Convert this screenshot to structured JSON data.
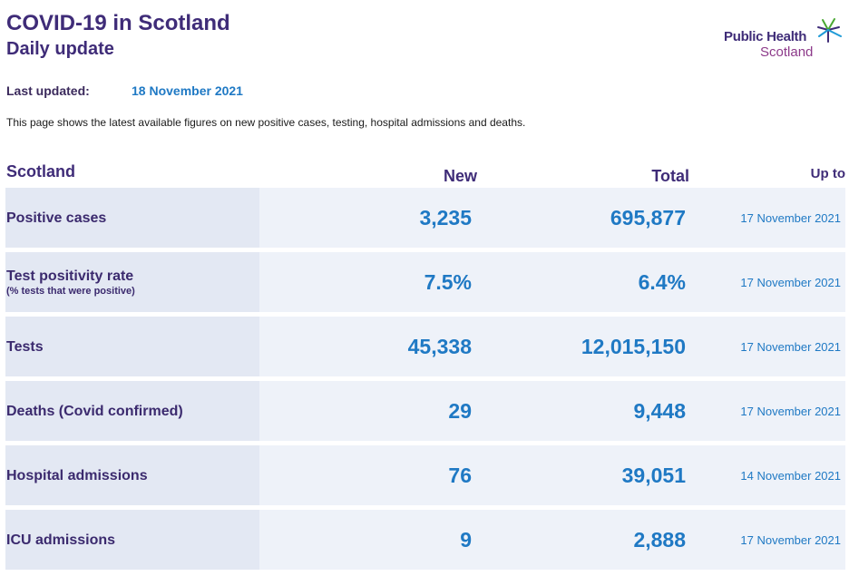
{
  "header": {
    "title": "COVID-19 in Scotland",
    "subtitle": "Daily update",
    "logo_line1": "Public Health",
    "logo_line2": "Scotland"
  },
  "last_updated": {
    "label": "Last updated:",
    "value": "18 November 2021"
  },
  "intro": "This page shows the latest available figures on new positive cases, testing, hospital admissions and deaths.",
  "table": {
    "headers": {
      "region": "Scotland",
      "new": "New",
      "total": "Total",
      "up_to": "Up to"
    },
    "rows": [
      {
        "label": "Positive cases",
        "sublabel": "",
        "new": "3,235",
        "total": "695,877",
        "up_to": "17 November 2021"
      },
      {
        "label": "Test positivity rate",
        "sublabel": "(% tests that were positive)",
        "new": "7.5%",
        "total": "6.4%",
        "up_to": "17 November 2021"
      },
      {
        "label": "Tests",
        "sublabel": "",
        "new": "45,338",
        "total": "12,015,150",
        "up_to": "17 November 2021"
      },
      {
        "label": "Deaths (Covid confirmed)",
        "sublabel": "",
        "new": "29",
        "total": "9,448",
        "up_to": "17 November 2021"
      },
      {
        "label": "Hospital admissions",
        "sublabel": "",
        "new": "76",
        "total": "39,051",
        "up_to": "14 November 2021"
      },
      {
        "label": "ICU admissions",
        "sublabel": "",
        "new": "9",
        "total": "2,888",
        "up_to": "17 November 2021"
      }
    ]
  },
  "colors": {
    "title": "#3f2c78",
    "accent": "#1f79c4",
    "logo_accent": "#8d3a8a",
    "row_bg": "#eef2f9",
    "label_bg": "#e3e8f3"
  }
}
